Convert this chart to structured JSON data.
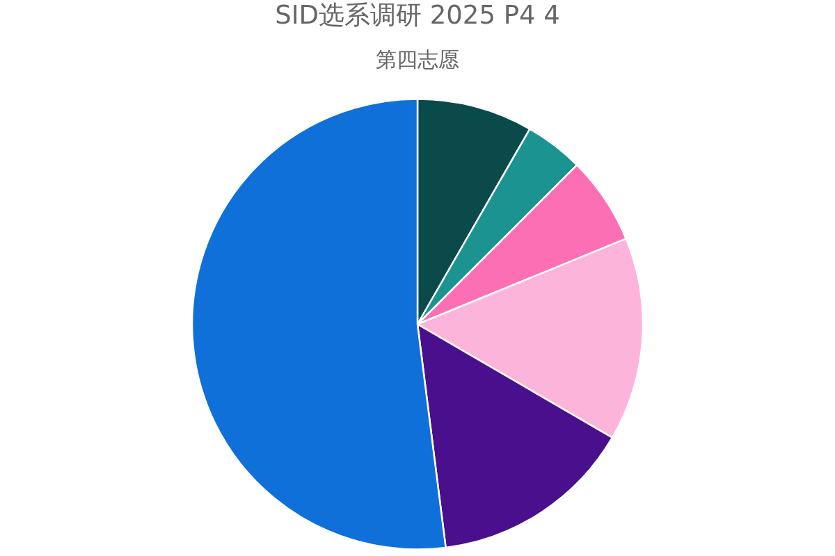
{
  "chart_data": {
    "type": "pie",
    "title": "SID选系调研 2025 P4 4",
    "subtitle": "第四志愿",
    "categories": [
      null,
      null,
      null,
      null,
      null,
      null
    ],
    "values": [
      8.3,
      4.2,
      6.3,
      14.6,
      14.6,
      52.0
    ],
    "colors": [
      "#0b4a4a",
      "#1b9390",
      "#fd6fb5",
      "#fdb4da",
      "#4a0f8c",
      "#1070da"
    ],
    "legend": false
  }
}
